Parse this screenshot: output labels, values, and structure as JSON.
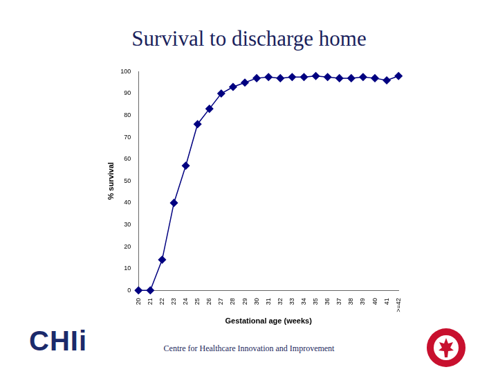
{
  "chart_data": {
    "type": "line",
    "title": "Survival to discharge home",
    "x_label": "Gestational age (weeks)",
    "y_label": "% survival",
    "categories": [
      "20",
      "21",
      "22",
      "23",
      "24",
      "25",
      "26",
      "27",
      "28",
      "29",
      "30",
      "31",
      "32",
      "33",
      "34",
      "35",
      "36",
      "37",
      "38",
      "39",
      "40",
      "41",
      ">=42"
    ],
    "values": [
      0,
      0,
      14,
      40,
      57,
      76,
      83,
      90,
      93,
      95,
      97,
      97.5,
      97,
      97.5,
      97.5,
      98,
      97.5,
      97,
      97,
      97.5,
      97,
      96,
      98
    ],
    "color": "#000080",
    "marker": "diamond",
    "ylim": [
      0,
      100
    ],
    "yticks": [
      0,
      10,
      20,
      30,
      40,
      50,
      60,
      70,
      80,
      90,
      100
    ],
    "grid": false
  },
  "footer": {
    "text": "Centre for Healthcare Innovation and Improvement",
    "logo": "CHIi"
  }
}
